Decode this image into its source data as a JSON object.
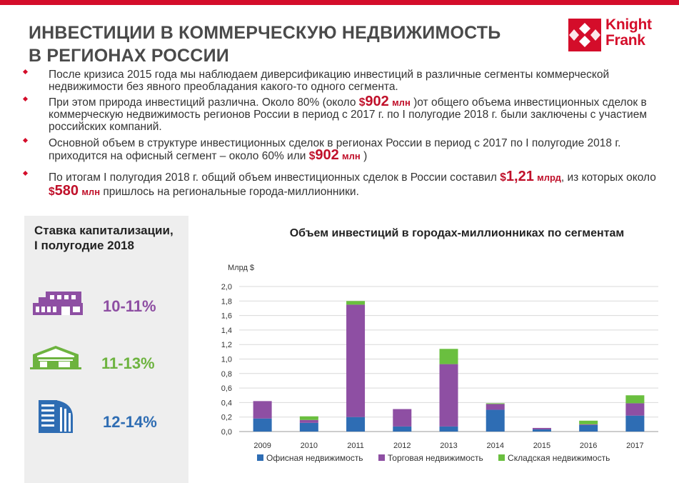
{
  "header": {
    "title_line1": "ИНВЕСТИЦИИ В КОММЕРЧЕСКУЮ НЕДВИЖИМОСТЬ",
    "title_line2": "В РЕГИОНАХ РОССИИ",
    "logo_line1": "Knight",
    "logo_line2": "Frank"
  },
  "bullets": {
    "b1": "После кризиса 2015 года мы наблюдаем диверсификацию инвестиций в различные сегменты коммерческой недвижимости без явного преобладания какого-то одного сегмента.",
    "b2_before": "При этом природа инвестиций различна. Около 80% (около ",
    "b2_dollar": "$",
    "b2_value": "902",
    "b2_unit": "млн",
    "b2_after": ")от общего объема инвестиционных сделок в коммерческую недвижимость регионов России в период с 2017 г. по I полугодие 2018 г. были заключены с участием российских компаний.",
    "b3_before": "Основной объем в структуре инвестиционных сделок в регионах России в период с 2017 по I полугодие 2018 г. приходится на офисный сегмент – около 60% или ",
    "b3_dollar": "$",
    "b3_value": "902",
    "b3_unit": "млн",
    "b3_after": ")",
    "b4_before": "По итогам I полугодия 2018 г. общий объем инвестиционных сделок в России составил ",
    "b4_dollar": "$",
    "b4_value": "1,21",
    "b4_unit": "млрд",
    "b4_mid": ", из которых около ",
    "b4_dollar2": "$",
    "b4_value2": "580",
    "b4_unit2": "млн",
    "b4_after": " пришлось на региональные города-миллионники."
  },
  "panel": {
    "title": "Ставка капитализации, I полугодие 2018",
    "rates": [
      {
        "icon": "warehouse-building-icon",
        "value": "10-11%",
        "color": "#8e4fa3"
      },
      {
        "icon": "logistics-warehouse-icon",
        "value": "11-13%",
        "color": "#6db33f"
      },
      {
        "icon": "office-building-icon",
        "value": "12-14%",
        "color": "#2f6db3"
      }
    ]
  },
  "chart_data": {
    "type": "bar",
    "stacked": true,
    "title": "Объем инвестиций в городах-миллионниках по сегментам",
    "ylabel": "Млрд $",
    "categories": [
      "2009",
      "2010",
      "2011",
      "2012",
      "2013",
      "2014",
      "2015",
      "2016",
      "2017"
    ],
    "series": [
      {
        "name": "Офисная недвижимость",
        "color": "#2e6db4",
        "values": [
          0.18,
          0.12,
          0.2,
          0.07,
          0.07,
          0.3,
          0.03,
          0.09,
          0.22
        ]
      },
      {
        "name": "Торговая недвижимость",
        "color": "#8e4fa3",
        "values": [
          0.24,
          0.04,
          1.55,
          0.24,
          0.86,
          0.08,
          0.02,
          0.01,
          0.17
        ]
      },
      {
        "name": "Складская недвижимость",
        "color": "#6abf3f",
        "values": [
          0.0,
          0.05,
          0.05,
          0.0,
          0.21,
          0.01,
          0.0,
          0.05,
          0.11
        ]
      }
    ],
    "ylim": [
      0,
      2.0
    ],
    "yticks": [
      "0,0",
      "0,2",
      "0,4",
      "0,6",
      "0,8",
      "1,0",
      "1,2",
      "1,4",
      "1,6",
      "1,8",
      "2,0"
    ],
    "grid": true,
    "legend": "bottom"
  }
}
